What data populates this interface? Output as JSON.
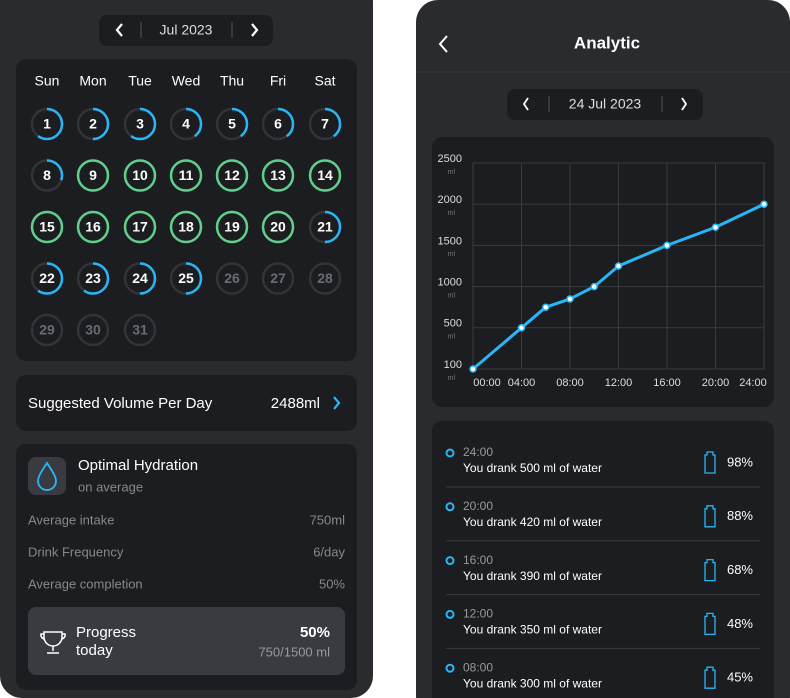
{
  "calendar": {
    "month": "Jul 2023",
    "weekdays": [
      "Sun",
      "Mon",
      "Tue",
      "Wed",
      "Thu",
      "Fri",
      "Sat"
    ],
    "days": [
      {
        "label": "1",
        "progress": 0.6
      },
      {
        "label": "2",
        "progress": 0.5
      },
      {
        "label": "3",
        "progress": 0.6
      },
      {
        "label": "4",
        "progress": 0.4
      },
      {
        "label": "5",
        "progress": 0.4
      },
      {
        "label": "6",
        "progress": 0.4
      },
      {
        "label": "7",
        "progress": 0.4
      },
      {
        "label": "8",
        "progress": 0.3
      },
      {
        "label": "9",
        "progress": 1
      },
      {
        "label": "10",
        "progress": 1
      },
      {
        "label": "11",
        "progress": 1
      },
      {
        "label": "12",
        "progress": 1
      },
      {
        "label": "13",
        "progress": 1
      },
      {
        "label": "14",
        "progress": 1
      },
      {
        "label": "15",
        "progress": 1
      },
      {
        "label": "16",
        "progress": 1
      },
      {
        "label": "17",
        "progress": 1
      },
      {
        "label": "18",
        "progress": 1
      },
      {
        "label": "19",
        "progress": 1
      },
      {
        "label": "20",
        "progress": 1
      },
      {
        "label": "21",
        "progress": 0.5
      },
      {
        "label": "22",
        "progress": 0.6
      },
      {
        "label": "23",
        "progress": 0.6
      },
      {
        "label": "24",
        "progress": 0.5
      },
      {
        "label": "25",
        "progress": 0.5
      },
      {
        "label": "26",
        "progress": 0
      },
      {
        "label": "27",
        "progress": 0
      },
      {
        "label": "28",
        "progress": 0
      },
      {
        "label": "29",
        "progress": 0
      },
      {
        "label": "30",
        "progress": 0
      },
      {
        "label": "31",
        "progress": 0
      }
    ]
  },
  "suggested": {
    "label": "Suggested Volume Per Day",
    "value": "2488ml"
  },
  "hydration": {
    "title": "Optimal Hydration",
    "subtitle": "on average",
    "stats": [
      {
        "label": "Average intake",
        "value": "750ml"
      },
      {
        "label": "Drink Frequency",
        "value": "6/day"
      },
      {
        "label": "Average completion",
        "value": "50%"
      }
    ],
    "progress": {
      "label": "Progress today",
      "percent": "50%",
      "detail": "750/1500 ml"
    }
  },
  "analytic": {
    "title": "Analytic",
    "date": "24 Jul 2023",
    "entries": [
      {
        "time": "24:00",
        "text": "You drank 500 ml of water",
        "percent": "98%"
      },
      {
        "time": "20:00",
        "text": "You drank 420 ml of water",
        "percent": "88%"
      },
      {
        "time": "16:00",
        "text": "You drank 390 ml of water",
        "percent": "68%"
      },
      {
        "time": "12:00",
        "text": "You drank 350 ml of water",
        "percent": "48%"
      },
      {
        "time": "08:00",
        "text": "You drank 300 ml of water",
        "percent": "45%"
      }
    ]
  },
  "chart_data": {
    "type": "line",
    "x": [
      0,
      4,
      6,
      8,
      10,
      12,
      16,
      20,
      24
    ],
    "series": [
      {
        "color": "#29b6f6",
        "values": [
          100,
          500,
          750,
          850,
          1000,
          1250,
          1500,
          1720,
          2000
        ]
      }
    ],
    "xlim": [
      0,
      24
    ],
    "xticks": [
      {
        "value": 0,
        "label": "00:00"
      },
      {
        "value": 4,
        "label": "04:00"
      },
      {
        "value": 8,
        "label": "08:00"
      },
      {
        "value": 12,
        "label": "12:00"
      },
      {
        "value": 16,
        "label": "16:00"
      },
      {
        "value": 20,
        "label": "20:00"
      },
      {
        "value": 24,
        "label": "24:00"
      }
    ],
    "ylim": [
      100,
      2500
    ],
    "yticks": [
      100,
      500,
      1000,
      1500,
      2000,
      2500
    ],
    "y_unit": "ml",
    "grid": true
  }
}
